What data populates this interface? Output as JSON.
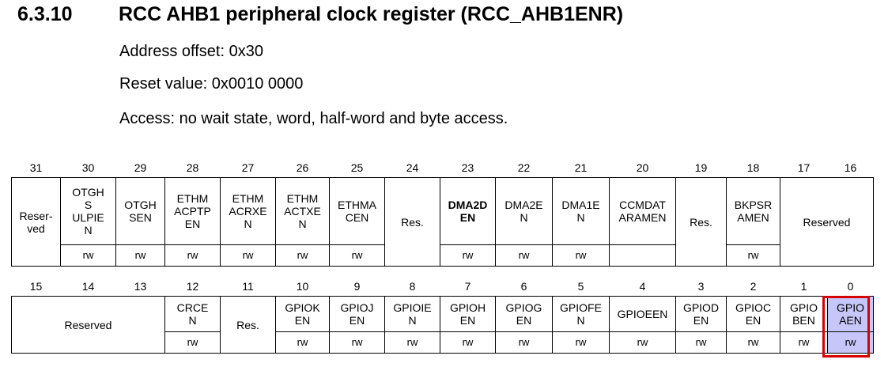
{
  "section": {
    "number": "6.3.10",
    "title": "RCC AHB1 peripheral clock register (RCC_AHB1ENR)"
  },
  "info": {
    "address_offset": "Address offset: 0x30",
    "reset_value": "Reset value: 0x0010 0000",
    "access": "Access: no wait state, word, half-word and byte access."
  },
  "high": {
    "bits": [
      "31",
      "30",
      "29",
      "28",
      "27",
      "26",
      "25",
      "24",
      "23",
      "22",
      "21",
      "20",
      "19",
      "18",
      "17",
      "16"
    ],
    "fields": [
      {
        "name": "Reser-\nved",
        "span": 1,
        "access": ""
      },
      {
        "name": "OTGH\nS\nULPIE\nN",
        "span": 1,
        "access": "rw"
      },
      {
        "name": "OTGH\nSEN",
        "span": 1,
        "access": "rw"
      },
      {
        "name": "ETHM\nACPTP\nEN",
        "span": 1,
        "access": "rw"
      },
      {
        "name": "ETHM\nACRXE\nN",
        "span": 1,
        "access": "rw"
      },
      {
        "name": "ETHM\nACTXE\nN",
        "span": 1,
        "access": "rw"
      },
      {
        "name": "ETHMA\nCEN",
        "span": 1,
        "access": "rw"
      },
      {
        "name": "Res.",
        "span": 1,
        "access": ""
      },
      {
        "name": "DMA2D\nEN",
        "span": 1,
        "access": "rw",
        "bold": true
      },
      {
        "name": "DMA2E\nN",
        "span": 1,
        "access": "rw"
      },
      {
        "name": "DMA1E\nN",
        "span": 1,
        "access": "rw"
      },
      {
        "name": "CCMDAT\nARAMEN",
        "span": 1,
        "access": ""
      },
      {
        "name": "Res.",
        "span": 1,
        "access": ""
      },
      {
        "name": "BKPSR\nAMEN",
        "span": 1,
        "access": "rw"
      },
      {
        "name": "Reserved",
        "span": 2,
        "access": ""
      }
    ]
  },
  "low": {
    "bits": [
      "15",
      "14",
      "13",
      "12",
      "11",
      "10",
      "9",
      "8",
      "7",
      "6",
      "5",
      "4",
      "3",
      "2",
      "1",
      "0"
    ],
    "fields": [
      {
        "name": "Reserved",
        "span": 3,
        "access": ""
      },
      {
        "name": "CRCE\nN",
        "span": 1,
        "access": "rw"
      },
      {
        "name": "Res.",
        "span": 1,
        "access": ""
      },
      {
        "name": "GPIOK\nEN",
        "span": 1,
        "access": "rw"
      },
      {
        "name": "GPIOJ\nEN",
        "span": 1,
        "access": "rw"
      },
      {
        "name": "GPIOIE\nN",
        "span": 1,
        "access": "rw"
      },
      {
        "name": "GPIOH\nEN",
        "span": 1,
        "access": "rw"
      },
      {
        "name": "GPIOG\nEN",
        "span": 1,
        "access": "rw"
      },
      {
        "name": "GPIOFE\nN",
        "span": 1,
        "access": "rw"
      },
      {
        "name": "GPIOEEN",
        "span": 1,
        "access": "rw"
      },
      {
        "name": "GPIOD\nEN",
        "span": 1,
        "access": "rw"
      },
      {
        "name": "GPIOC\nEN",
        "span": 1,
        "access": "rw"
      },
      {
        "name": "GPIO\nBEN",
        "span": 1,
        "access": "rw"
      },
      {
        "name": "GPIO\nAEN",
        "span": 1,
        "access": "rw",
        "highlight": true
      }
    ]
  },
  "colors": {
    "highlight_fill": "#c6c6f8",
    "highlight_border": "#d60000"
  }
}
